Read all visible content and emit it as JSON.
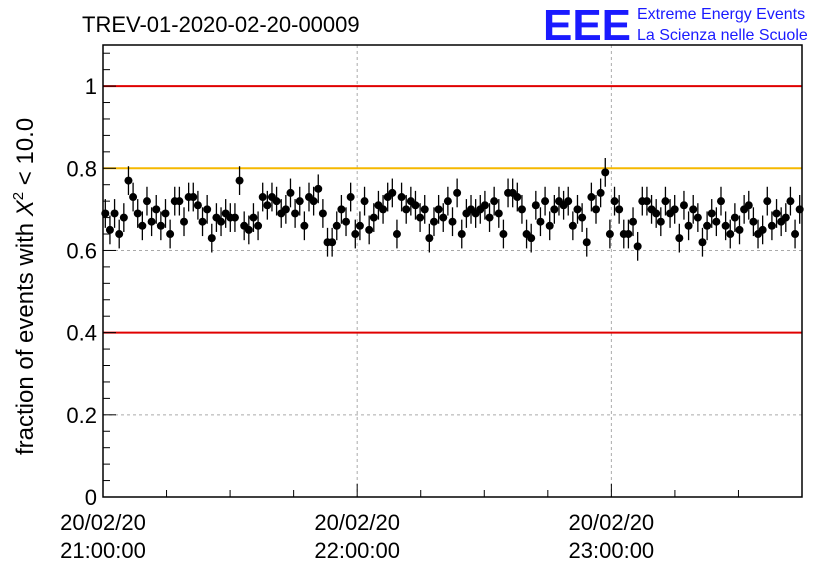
{
  "header": {
    "title": "TREV-01-2020-02-20-00009",
    "logo_letters": "EEE",
    "logo_line1": "Extreme Energy Events",
    "logo_line2": "La Scienza nelle Scuole"
  },
  "chart_data": {
    "type": "scatter",
    "ylabel_main": "fraction of events with ",
    "ylabel_symbol": "X",
    "ylabel_sup": "2",
    "ylabel_tail": " < 10.0",
    "xlim": [
      0,
      165
    ],
    "ylim": [
      0,
      1.1
    ],
    "grid": true,
    "x_ticks": [
      {
        "x": 0,
        "date": "20/02/20",
        "time": "21:00:00"
      },
      {
        "x": 60,
        "date": "20/02/20",
        "time": "22:00:00"
      },
      {
        "x": 120,
        "date": "20/02/20",
        "time": "23:00:00"
      }
    ],
    "y_ticks": [
      {
        "value": 0,
        "label": "0"
      },
      {
        "value": 0.2,
        "label": "0.2"
      },
      {
        "value": 0.4,
        "label": "0.4"
      },
      {
        "value": 0.6,
        "label": "0.6"
      },
      {
        "value": 0.8,
        "label": "0.8"
      },
      {
        "value": 1.0,
        "label": "1"
      }
    ],
    "reference_lines": [
      {
        "y": 1.0,
        "color": "#e00000"
      },
      {
        "y": 0.8,
        "color": "#f5b800"
      },
      {
        "y": 0.4,
        "color": "#e00000"
      }
    ],
    "marker_color": "#000000",
    "error": 0.035,
    "y": [
      0.69,
      0.65,
      0.69,
      0.64,
      0.68,
      0.77,
      0.73,
      0.69,
      0.66,
      0.72,
      0.67,
      0.7,
      0.66,
      0.69,
      0.64,
      0.72,
      0.72,
      0.67,
      0.73,
      0.73,
      0.71,
      0.67,
      0.7,
      0.63,
      0.68,
      0.67,
      0.69,
      0.68,
      0.68,
      0.77,
      0.66,
      0.65,
      0.68,
      0.66,
      0.73,
      0.71,
      0.73,
      0.72,
      0.69,
      0.7,
      0.74,
      0.69,
      0.72,
      0.66,
      0.73,
      0.72,
      0.75,
      0.69,
      0.62,
      0.62,
      0.66,
      0.7,
      0.67,
      0.73,
      0.64,
      0.66,
      0.72,
      0.65,
      0.68,
      0.71,
      0.7,
      0.73,
      0.74,
      0.64,
      0.73,
      0.7,
      0.72,
      0.71,
      0.68,
      0.7,
      0.63,
      0.67,
      0.7,
      0.68,
      0.72,
      0.67,
      0.74,
      0.64,
      0.69,
      0.7,
      0.69,
      0.7,
      0.71,
      0.68,
      0.72,
      0.69,
      0.64,
      0.74,
      0.74,
      0.73,
      0.7,
      0.64,
      0.63,
      0.71,
      0.67,
      0.72,
      0.66,
      0.7,
      0.72,
      0.71,
      0.72,
      0.66,
      0.7,
      0.68,
      0.62,
      0.73,
      0.7,
      0.74,
      0.79,
      0.64,
      0.72,
      0.7,
      0.64,
      0.64,
      0.67,
      0.61,
      0.72,
      0.72,
      0.7,
      0.69,
      0.67,
      0.72,
      0.69,
      0.7,
      0.63,
      0.71,
      0.66,
      0.7,
      0.68,
      0.62,
      0.66,
      0.69,
      0.67,
      0.72,
      0.66,
      0.64,
      0.68,
      0.65,
      0.7,
      0.71,
      0.67,
      0.64,
      0.65,
      0.72,
      0.66,
      0.69,
      0.67,
      0.68,
      0.72,
      0.64,
      0.7
    ]
  }
}
